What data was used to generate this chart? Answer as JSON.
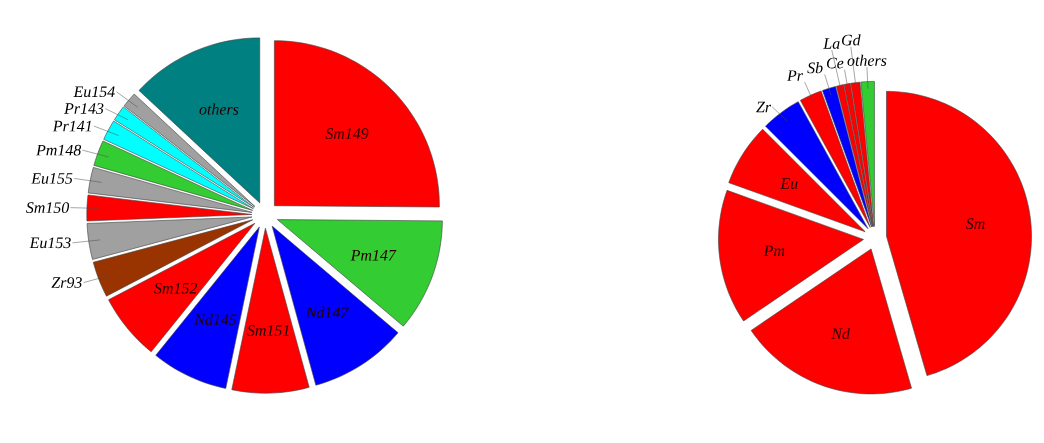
{
  "chart_data": [
    {
      "type": "pie",
      "categories": [
        "Sm149",
        "Pm147",
        "Nd147",
        "Sm151",
        "Nd145",
        "Sm152",
        "Zr93",
        "Eu153",
        "Sm150",
        "Eu155",
        "Pm148",
        "Pr141",
        "Pr143",
        "Eu154",
        "others"
      ],
      "values": [
        25,
        11,
        9.5,
        7.5,
        7.5,
        6.5,
        3.5,
        3.5,
        2.5,
        2.5,
        2.5,
        2,
        1.5,
        1.5,
        13
      ],
      "colors": [
        "#ff0000",
        "#33cc33",
        "#0000ff",
        "#ff0000",
        "#0000ff",
        "#ff0000",
        "#993300",
        "#a0a0a0",
        "#ff0000",
        "#a0a0a0",
        "#33cc33",
        "#00ffff",
        "#00ffff",
        "#a0a0a0",
        "#008080"
      ]
    },
    {
      "type": "pie",
      "categories": [
        "Sm",
        "Nd",
        "Pm",
        "Eu",
        "Zr",
        "Pr",
        "Sb",
        "La",
        "Ce",
        "Gd",
        "others"
      ],
      "values": [
        45.5,
        20,
        15,
        7,
        4.5,
        2.5,
        1.5,
        0.8,
        0.7,
        1,
        1.5
      ],
      "colors": [
        "#ff0000",
        "#ff0000",
        "#ff0000",
        "#ff0000",
        "#0000ff",
        "#ff0000",
        "#0000ff",
        "#ff0000",
        "#ff0000",
        "#ff0000",
        "#33cc33"
      ]
    }
  ]
}
